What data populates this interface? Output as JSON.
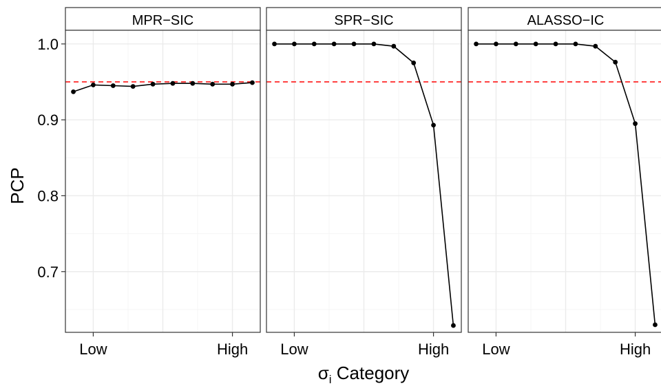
{
  "chart_data": {
    "type": "line",
    "ylabel": "PCP",
    "xlabel": {
      "main": "σ",
      "sub": "i",
      "rest": " Category"
    },
    "ylim": [
      0.62,
      1.018
    ],
    "yticks": [
      0.7,
      0.8,
      0.9,
      1.0
    ],
    "ytick_labels": [
      "0.7",
      "0.8",
      "0.9",
      "1.0"
    ],
    "x_tick_labels": [
      "Low",
      "High"
    ],
    "x_tick_positions": [
      2,
      9
    ],
    "xlim": [
      0.6,
      10.4
    ],
    "reference_line": {
      "value": 0.95,
      "color": "#ff0000",
      "style": "dashed"
    },
    "grid": true,
    "panels": [
      {
        "title": "MPR−SIC",
        "x": [
          1,
          2,
          3,
          4,
          5,
          6,
          7,
          8,
          9,
          10
        ],
        "values": [
          0.937,
          0.946,
          0.945,
          0.944,
          0.947,
          0.948,
          0.948,
          0.947,
          0.947,
          0.949
        ]
      },
      {
        "title": "SPR−SIC",
        "x": [
          1,
          2,
          3,
          4,
          5,
          6,
          7,
          8,
          9,
          10
        ],
        "values": [
          1.0,
          1.0,
          1.0,
          1.0,
          1.0,
          1.0,
          0.997,
          0.975,
          0.893,
          0.629
        ]
      },
      {
        "title": "ALASSO−IC",
        "x": [
          1,
          2,
          3,
          4,
          5,
          6,
          7,
          8,
          9,
          10
        ],
        "values": [
          1.0,
          1.0,
          1.0,
          1.0,
          1.0,
          1.0,
          0.997,
          0.976,
          0.895,
          0.63
        ]
      }
    ],
    "colors": {
      "line": "#000000",
      "point": "#000000",
      "grid_major": "#ebebeb",
      "grid_minor": "#f5f5f5",
      "strip": "#ffffff",
      "border": "#333333"
    }
  }
}
